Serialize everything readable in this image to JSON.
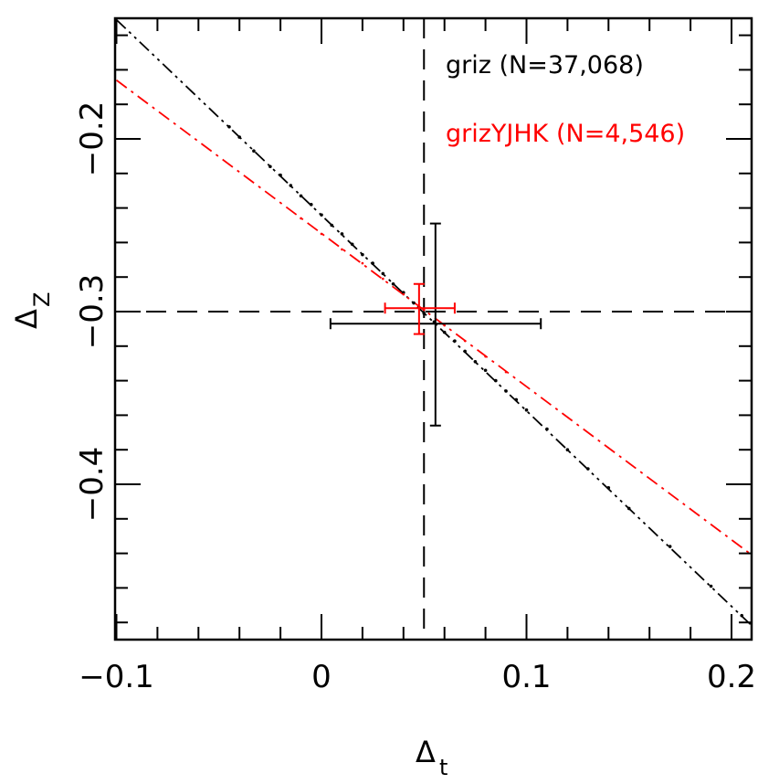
{
  "chart_data": {
    "type": "scatter",
    "title": "",
    "xlabel": "Δ",
    "xlabel_sub": "t",
    "ylabel": "Δ",
    "ylabel_sub": "Z",
    "xlim": [
      -0.1,
      0.21
    ],
    "ylim": [
      -0.49,
      -0.13
    ],
    "x_ticks": [
      {
        "v": -0.1,
        "label": "−0.1"
      },
      {
        "v": 0,
        "label": "0"
      },
      {
        "v": 0.1,
        "label": "0.1"
      },
      {
        "v": 0.2,
        "label": "0.2"
      }
    ],
    "y_ticks": [
      {
        "v": -0.2,
        "label": "−0.2"
      },
      {
        "v": -0.3,
        "label": "−0.3"
      },
      {
        "v": -0.4,
        "label": "−0.4"
      }
    ],
    "x_minor_step": 0.02,
    "y_minor_step": 0.02,
    "grid": false,
    "reference_lines": {
      "vertical_x": 0.05,
      "horizontal_y": -0.3,
      "style": "dashed"
    },
    "legend_placement": "top-right",
    "series": [
      {
        "name": "griz (N=37,068)",
        "color": "#000000",
        "fit_line": {
          "x": [
            -0.1,
            0.21
          ],
          "y": [
            -0.131,
            -0.482
          ],
          "style": "dash-dot-dot"
        },
        "error_cross": {
          "x": 0.0556,
          "y": -0.307,
          "x_range": [
            0.0044,
            0.107
          ],
          "y_range": [
            -0.249,
            -0.366
          ]
        },
        "points": [
          [
            -0.045,
            -0.193
          ],
          [
            -0.04,
            -0.199
          ],
          [
            -0.033,
            -0.207
          ],
          [
            -0.025,
            -0.216
          ],
          [
            -0.02,
            -0.221
          ],
          [
            -0.015,
            -0.227
          ],
          [
            -0.01,
            -0.233
          ],
          [
            -0.005,
            -0.238
          ],
          [
            0,
            -0.244
          ],
          [
            0.005,
            -0.25
          ],
          [
            0.01,
            -0.255
          ],
          [
            0.015,
            -0.261
          ],
          [
            0.02,
            -0.267
          ],
          [
            0.025,
            -0.272
          ],
          [
            0.03,
            -0.278
          ],
          [
            0.035,
            -0.284
          ],
          [
            0.04,
            -0.289
          ],
          [
            0.045,
            -0.295
          ],
          [
            0.05,
            -0.301
          ],
          [
            0.055,
            -0.306
          ],
          [
            0.06,
            -0.312
          ],
          [
            0.065,
            -0.317
          ],
          [
            0.07,
            -0.323
          ],
          [
            0.075,
            -0.329
          ],
          [
            0.08,
            -0.334
          ],
          [
            0.085,
            -0.34
          ],
          [
            0.09,
            -0.346
          ],
          [
            0.095,
            -0.351
          ],
          [
            0.1,
            -0.357
          ],
          [
            0.11,
            -0.368
          ],
          [
            0.12,
            -0.38
          ],
          [
            0.13,
            -0.391
          ],
          [
            0.14,
            -0.402
          ],
          [
            0.15,
            -0.414
          ],
          [
            0.17,
            -0.436
          ],
          [
            0.19,
            -0.459
          ],
          [
            0.205,
            -0.476
          ]
        ]
      },
      {
        "name": "grizYJHK (N=4,546)",
        "color": "#ff0000",
        "fit_line": {
          "x": [
            -0.1,
            0.21
          ],
          "y": [
            -0.166,
            -0.441
          ],
          "style": "dash-dot"
        },
        "error_cross": {
          "x": 0.0476,
          "y": -0.298,
          "x_range": [
            0.031,
            0.065
          ],
          "y_range": [
            -0.284,
            -0.313
          ]
        },
        "points": [
          [
            -0.01,
            -0.246
          ],
          [
            0,
            -0.255
          ],
          [
            0.01,
            -0.264
          ],
          [
            0.02,
            -0.272
          ],
          [
            0.03,
            -0.281
          ],
          [
            0.04,
            -0.29
          ],
          [
            0.05,
            -0.299
          ],
          [
            0.06,
            -0.308
          ],
          [
            0.07,
            -0.317
          ],
          [
            0.08,
            -0.326
          ],
          [
            0.09,
            -0.335
          ]
        ]
      }
    ]
  }
}
